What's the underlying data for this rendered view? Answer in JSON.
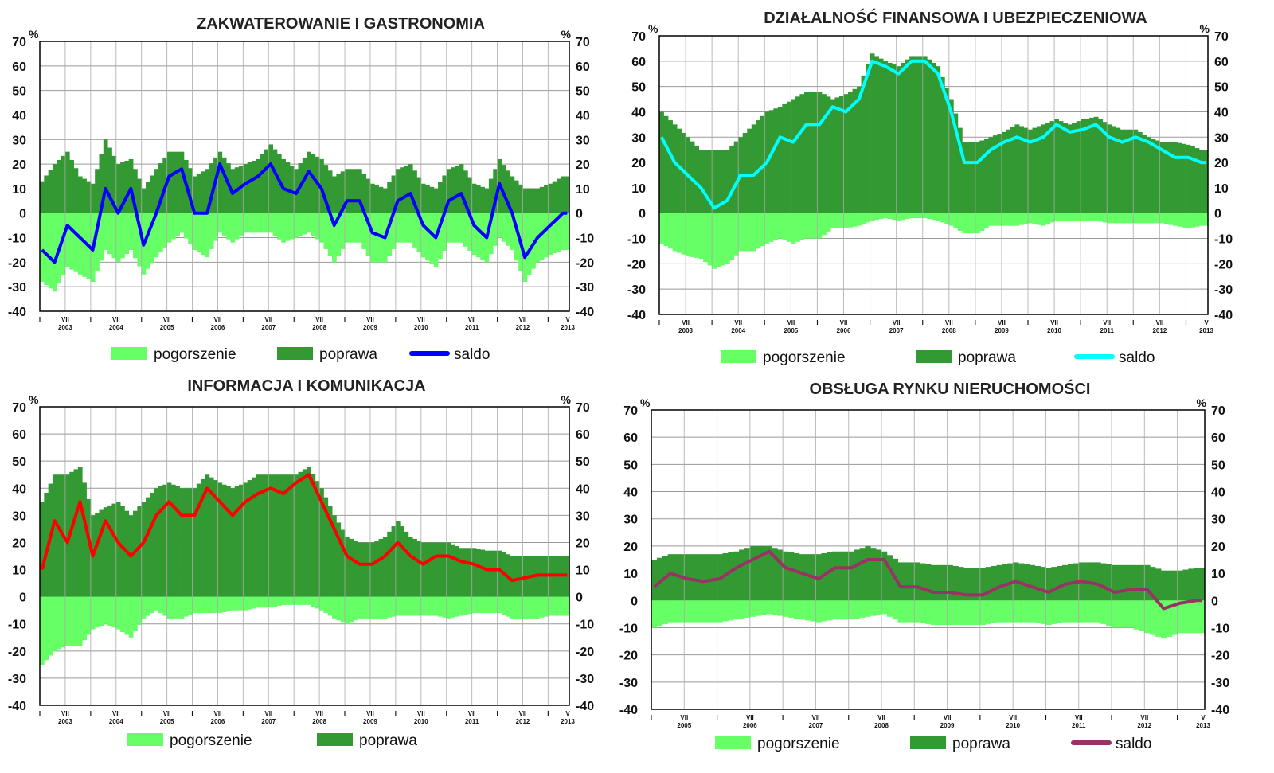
{
  "legend": {
    "pogorszenie": "pogorszenie",
    "poprawa": "poprawa",
    "saldo": "saldo"
  },
  "colors": {
    "pogorszenie": "#66ff66",
    "poprawa": "#339933"
  },
  "axis": {
    "unit": "%",
    "month_start": "I",
    "month_mid": "VII",
    "month_last": "V"
  },
  "chart_data": [
    {
      "type": "bar+line",
      "title": "ZAKWATEROWANIE I GASTRONOMIA",
      "ylim": [
        -40,
        70
      ],
      "yticks": [
        70,
        60,
        50,
        40,
        30,
        20,
        10,
        0,
        -10,
        -20,
        -30,
        -40
      ],
      "x_start": "I 2003",
      "x_end": "V 2013",
      "months": 125,
      "sampling": "quarterly",
      "years": [
        "2003",
        "2004",
        "2005",
        "2006",
        "2007",
        "2008",
        "2009",
        "2010",
        "2011",
        "2012",
        "2013"
      ],
      "saldo_color": "#0000ff",
      "show_saldo_legend": true,
      "saldo": [
        -15,
        -20,
        -5,
        -10,
        -15,
        10,
        0,
        10,
        -13,
        0,
        15,
        18,
        0,
        0,
        20,
        8,
        12,
        15,
        20,
        10,
        8,
        17,
        10,
        -5,
        5,
        5,
        -8,
        -10,
        5,
        8,
        -5,
        -10,
        5,
        8,
        -5,
        -10,
        12,
        0,
        -18,
        -10,
        -5,
        0
      ],
      "poprawa": [
        13,
        20,
        25,
        15,
        12,
        30,
        20,
        22,
        10,
        18,
        25,
        25,
        15,
        18,
        25,
        18,
        20,
        22,
        28,
        22,
        18,
        25,
        22,
        15,
        18,
        18,
        12,
        10,
        18,
        20,
        12,
        10,
        18,
        20,
        12,
        10,
        22,
        15,
        10,
        10,
        12,
        15
      ],
      "pogorszenie": [
        -28,
        -32,
        -22,
        -25,
        -28,
        -15,
        -20,
        -15,
        -25,
        -18,
        -12,
        -8,
        -15,
        -18,
        -8,
        -12,
        -8,
        -8,
        -8,
        -12,
        -10,
        -8,
        -12,
        -20,
        -12,
        -12,
        -20,
        -20,
        -12,
        -12,
        -18,
        -22,
        -12,
        -12,
        -17,
        -20,
        -10,
        -15,
        -28,
        -20,
        -17,
        -15
      ]
    },
    {
      "type": "bar+line",
      "title": "DZIAŁALNOŚĆ FINANSOWA I UBEZPIECZENIOWA",
      "ylim": [
        -40,
        70
      ],
      "yticks": [
        70,
        60,
        50,
        40,
        30,
        20,
        10,
        0,
        -10,
        -20,
        -30,
        -40
      ],
      "x_start": "I 2003",
      "x_end": "V 2013",
      "months": 125,
      "sampling": "quarterly",
      "years": [
        "2003",
        "2004",
        "2005",
        "2006",
        "2007",
        "2008",
        "2009",
        "2010",
        "2011",
        "2012",
        "2013"
      ],
      "saldo_color": "#00ffff",
      "show_saldo_legend": true,
      "saldo": [
        30,
        20,
        15,
        10,
        2,
        5,
        15,
        15,
        20,
        30,
        28,
        35,
        35,
        42,
        40,
        45,
        60,
        58,
        55,
        60,
        60,
        55,
        40,
        20,
        20,
        25,
        28,
        30,
        28,
        30,
        35,
        32,
        33,
        35,
        30,
        28,
        30,
        28,
        25,
        22,
        22,
        20
      ],
      "poprawa": [
        40,
        35,
        30,
        25,
        25,
        25,
        30,
        35,
        40,
        42,
        45,
        48,
        48,
        45,
        47,
        50,
        63,
        60,
        58,
        62,
        62,
        58,
        45,
        28,
        28,
        30,
        32,
        35,
        33,
        35,
        37,
        35,
        37,
        38,
        35,
        33,
        33,
        30,
        28,
        28,
        27,
        25
      ],
      "pogorszenie": [
        -12,
        -15,
        -17,
        -18,
        -22,
        -20,
        -15,
        -15,
        -12,
        -10,
        -12,
        -10,
        -10,
        -6,
        -6,
        -5,
        -3,
        -2,
        -3,
        -2,
        -2,
        -3,
        -5,
        -8,
        -8,
        -5,
        -5,
        -5,
        -4,
        -5,
        -3,
        -3,
        -3,
        -3,
        -4,
        -4,
        -4,
        -4,
        -4,
        -5,
        -6,
        -5
      ]
    },
    {
      "type": "bar+line",
      "title": "INFORMACJA I KOMUNIKACJA",
      "ylim": [
        -40,
        70
      ],
      "yticks": [
        70,
        60,
        50,
        40,
        30,
        20,
        10,
        0,
        -10,
        -20,
        -30,
        -40
      ],
      "x_start": "I 2003",
      "x_end": "V 2013",
      "months": 125,
      "sampling": "quarterly",
      "years": [
        "2003",
        "2004",
        "2005",
        "2006",
        "2007",
        "2008",
        "2009",
        "2010",
        "2011",
        "2012",
        "2013"
      ],
      "saldo_color": "#ff0000",
      "show_saldo_legend": false,
      "saldo": [
        10,
        28,
        20,
        35,
        15,
        28,
        20,
        15,
        20,
        30,
        35,
        30,
        30,
        40,
        35,
        30,
        35,
        38,
        40,
        38,
        42,
        45,
        35,
        25,
        15,
        12,
        12,
        15,
        20,
        15,
        12,
        15,
        15,
        13,
        12,
        10,
        10,
        6,
        7,
        8,
        8,
        8
      ],
      "poprawa": [
        35,
        45,
        45,
        48,
        30,
        33,
        35,
        30,
        35,
        40,
        42,
        40,
        40,
        45,
        42,
        40,
        42,
        45,
        45,
        45,
        45,
        48,
        40,
        30,
        22,
        20,
        20,
        22,
        28,
        22,
        20,
        20,
        20,
        18,
        18,
        17,
        17,
        15,
        15,
        15,
        15,
        15
      ],
      "pogorszenie": [
        -25,
        -20,
        -18,
        -18,
        -12,
        -10,
        -12,
        -15,
        -8,
        -5,
        -8,
        -8,
        -6,
        -6,
        -6,
        -5,
        -5,
        -4,
        -4,
        -3,
        -3,
        -3,
        -5,
        -8,
        -10,
        -8,
        -8,
        -8,
        -7,
        -7,
        -7,
        -7,
        -8,
        -7,
        -6,
        -6,
        -6,
        -8,
        -8,
        -8,
        -7,
        -7
      ]
    },
    {
      "type": "bar+line",
      "title": "OBSŁUGA RYNKU NIERUCHOMOŚCI",
      "ylim": [
        -40,
        70
      ],
      "yticks": [
        70,
        60,
        50,
        40,
        30,
        20,
        10,
        0,
        -10,
        -20,
        -30,
        -40
      ],
      "x_start": "I 2005",
      "x_end": "V 2013",
      "months": 101,
      "sampling": "quarterly",
      "years": [
        "2005",
        "2006",
        "2007",
        "2008",
        "2009",
        "2010",
        "2011",
        "2012",
        "2013"
      ],
      "saldo_color": "#993366",
      "show_saldo_legend": true,
      "saldo": [
        5,
        10,
        8,
        7,
        8,
        12,
        15,
        18,
        12,
        10,
        8,
        12,
        12,
        15,
        15,
        5,
        5,
        3,
        3,
        2,
        2,
        5,
        7,
        5,
        3,
        6,
        7,
        6,
        3,
        4,
        4,
        -3,
        -1,
        0
      ],
      "poprawa": [
        15,
        17,
        17,
        17,
        17,
        18,
        20,
        20,
        18,
        17,
        17,
        18,
        18,
        20,
        18,
        14,
        14,
        13,
        13,
        12,
        12,
        13,
        14,
        13,
        12,
        13,
        14,
        14,
        13,
        13,
        13,
        11,
        11,
        12
      ],
      "pogorszenie": [
        -10,
        -8,
        -8,
        -8,
        -8,
        -7,
        -6,
        -5,
        -6,
        -7,
        -8,
        -7,
        -7,
        -6,
        -5,
        -8,
        -8,
        -9,
        -9,
        -9,
        -9,
        -8,
        -8,
        -8,
        -9,
        -8,
        -8,
        -8,
        -10,
        -10,
        -12,
        -14,
        -12,
        -12
      ]
    }
  ]
}
